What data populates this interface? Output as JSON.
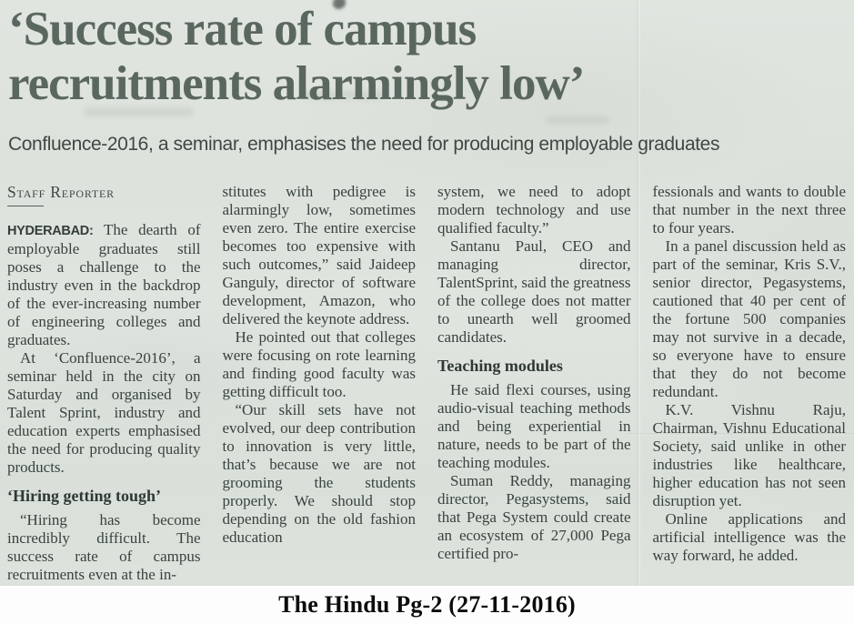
{
  "colors": {
    "newsprint_bg": "#dde2dc",
    "headline_text": "#5a675f",
    "body_text": "#38423e",
    "caption_text": "#0c0c0c"
  },
  "article": {
    "headline": "‘Success rate of campus recruitments alarmingly low’",
    "standfirst": "Confluence-2016, a seminar, emphasises the need for producing employable graduates",
    "byline": "Staff Reporter",
    "col1": {
      "dateline": "HYDERABAD:",
      "para1": "The dearth of employable graduates still poses a challenge to the industry even in the backdrop of the ever-increasing number of engineering colleges and graduates.",
      "para2": "At ‘Confluence-2016’, a seminar held in the city on Saturday and organised by Talent Sprint, industry and education experts emphasised the need for producing quality products.",
      "crosshead": "‘Hiring getting tough’",
      "para3": "“Hiring has become incredibly difficult. The success rate of campus recruitments even at the in-"
    },
    "col2": {
      "para1": "stitutes with pedigree is alarmingly low, sometimes even zero. The entire exercise becomes too expensive with such outcomes,” said Jaideep Ganguly, director of software development, Amazon, who delivered the keynote address.",
      "para2": "He pointed out that colleges were focusing on rote learning and finding good faculty was getting difficult too.",
      "para3": "“Our skill sets have not evolved, our deep contribution to innovation is very little, that’s because we are not grooming the students properly. We should stop depending on the old fashion education"
    },
    "col3": {
      "para1": "system, we need to adopt modern technology and use qualified faculty.”",
      "para2": "Santanu Paul, CEO and managing director, TalentSprint, said the greatness of the college does not matter to unearth well groomed candidates.",
      "crosshead": "Teaching modules",
      "para3": "He said flexi courses, using audio-visual teaching methods and being experiential in nature, needs to be part of the teaching modules.",
      "para4": "Suman Reddy, managing director, Pegasystems, said that Pega System could create an ecosystem of 27,000 Pega certified pro-"
    },
    "col4": {
      "para1": "fessionals and wants to double that number in the next three to four years.",
      "para2": "In a panel discussion held as part of the seminar, Kris S.V., senior director, Pegasystems, cautioned that 40 per cent of the fortune 500 companies may not survive in a decade, so everyone have to ensure that they do not become redundant.",
      "para3": "K.V. Vishnu Raju, Chairman, Vishnu Educational Society, said unlike in other industries like healthcare, higher education has not seen disruption yet.",
      "para4": "Online applications and artificial intelligence was the way forward, he added."
    }
  },
  "caption": "The Hindu Pg-2 (27-11-2016)"
}
